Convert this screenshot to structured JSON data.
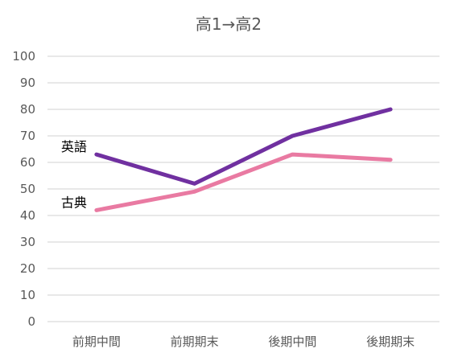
{
  "chart_data": {
    "type": "line",
    "title": "高1→高2",
    "xlabel": "",
    "ylabel": "",
    "categories": [
      "前期中間",
      "前期期末",
      "後期中間",
      "後期期末"
    ],
    "ylim": [
      0,
      100
    ],
    "yticks": [
      0,
      10,
      20,
      30,
      40,
      50,
      60,
      70,
      80,
      90,
      100
    ],
    "grid": true,
    "legend": "none",
    "series": [
      {
        "name": "英語",
        "values": [
          63,
          52,
          70,
          80
        ],
        "color": "#7030a0"
      },
      {
        "name": "古典",
        "values": [
          42,
          49,
          63,
          61
        ],
        "color": "#e97aa2"
      }
    ]
  }
}
